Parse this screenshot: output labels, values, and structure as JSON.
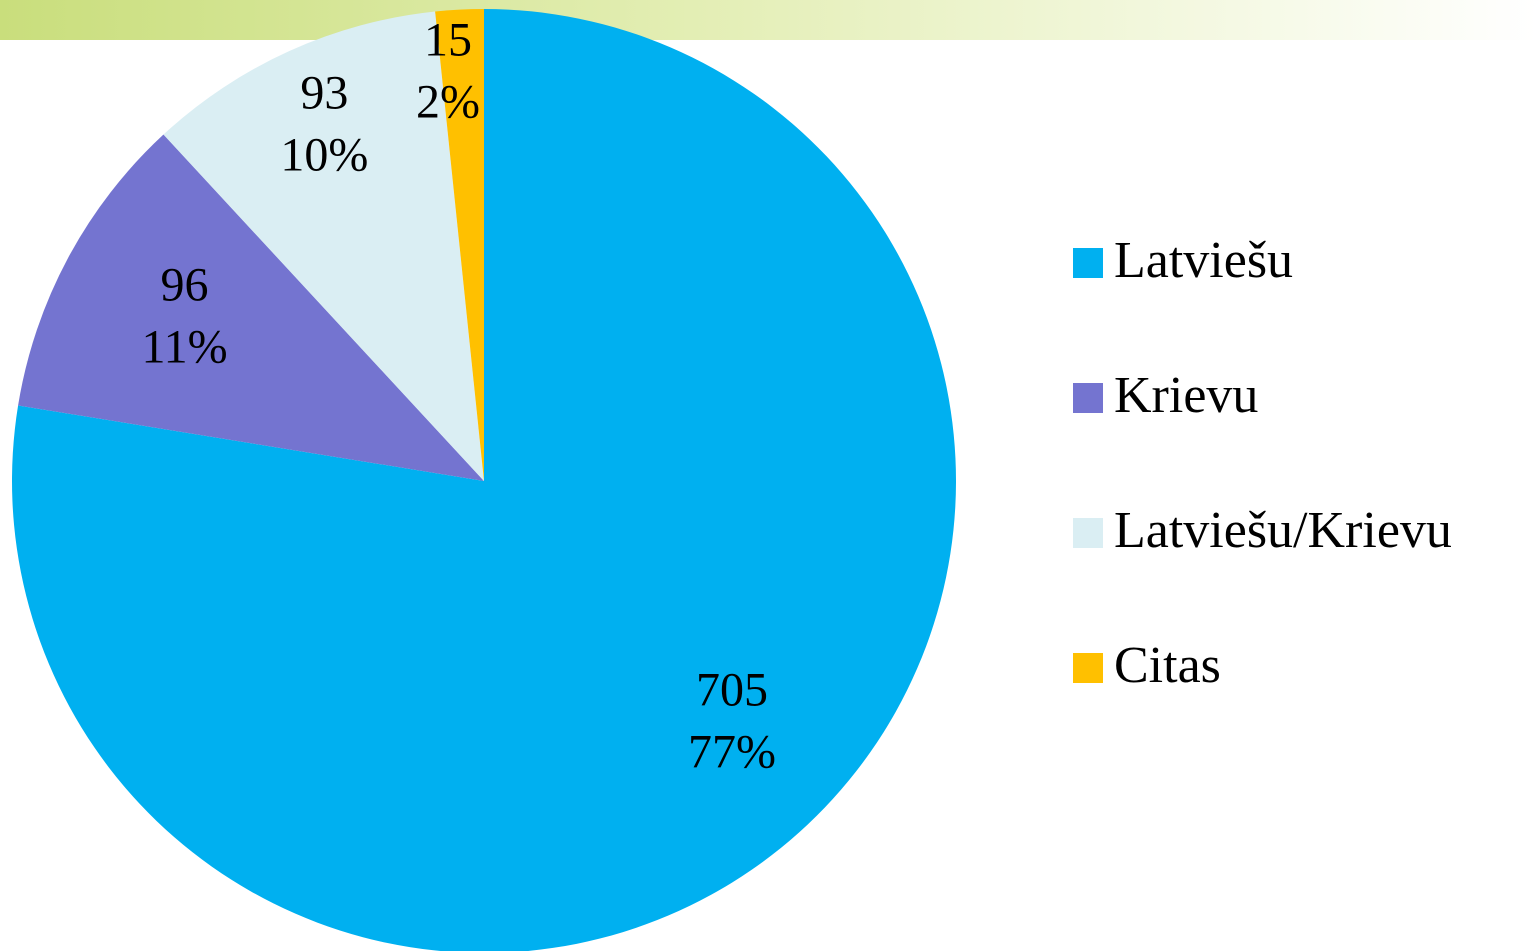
{
  "chart_data": {
    "type": "pie",
    "categories": [
      "Latviešu",
      "Krievu",
      "Latviešu/Krievu",
      "Citas"
    ],
    "values": [
      705,
      96,
      93,
      15
    ],
    "percent_labels": [
      "77%",
      "11%",
      "10%",
      "2%"
    ],
    "colors": [
      "#00b0f0",
      "#7474d0",
      "#daeef3",
      "#ffc000"
    ],
    "legend": "right"
  }
}
